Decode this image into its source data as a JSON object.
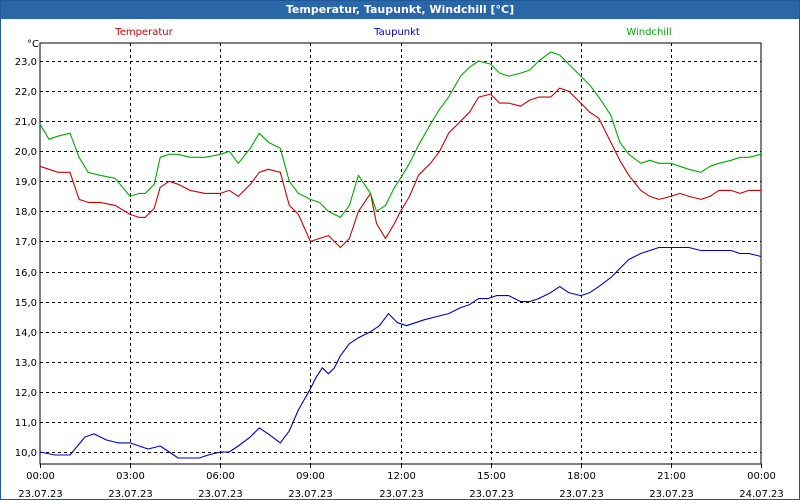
{
  "window": {
    "title": "Temperatur, Taupunkt, Windchill [°C]"
  },
  "chart_data": {
    "type": "line",
    "title": "Temperatur, Taupunkt, Windchill [°C]",
    "ylabel": "°C",
    "ylim": [
      9.6,
      23.6
    ],
    "xlim": [
      0,
      24
    ],
    "grid": true,
    "yticks": [
      10,
      11,
      12,
      13,
      14,
      15,
      16,
      17,
      18,
      19,
      20,
      21,
      22,
      23
    ],
    "ytick_labels": [
      "10,0",
      "11,0",
      "12,0",
      "13,0",
      "14,0",
      "15,0",
      "16,0",
      "17,0",
      "18,0",
      "19,0",
      "20,0",
      "21,0",
      "22,0",
      "23,0"
    ],
    "xticks": [
      0,
      3,
      6,
      9,
      12,
      15,
      18,
      21,
      24
    ],
    "xtick_times": [
      "00:00",
      "03:00",
      "06:00",
      "09:00",
      "12:00",
      "15:00",
      "18:00",
      "21:00",
      "00:00"
    ],
    "xtick_dates": [
      "23.07.23",
      "23.07.23",
      "23.07.23",
      "23.07.23",
      "23.07.23",
      "23.07.23",
      "23.07.23",
      "23.07.23",
      "24.07.23"
    ],
    "series": [
      {
        "name": "Temperatur",
        "color": "#cc0000",
        "x": [
          0,
          0.3,
          0.6,
          1,
          1.3,
          1.6,
          2,
          2.5,
          3,
          3.3,
          3.5,
          3.8,
          4,
          4.3,
          4.6,
          5,
          5.5,
          6,
          6.3,
          6.6,
          7,
          7.3,
          7.6,
          8,
          8.3,
          8.6,
          9,
          9.3,
          9.6,
          10,
          10.3,
          10.6,
          11,
          11.2,
          11.5,
          11.8,
          12,
          12.3,
          12.6,
          13,
          13.3,
          13.6,
          14,
          14.3,
          14.6,
          15,
          15.3,
          15.6,
          16,
          16.3,
          16.6,
          17,
          17.3,
          17.6,
          18,
          18.3,
          18.6,
          19,
          19.3,
          19.6,
          20,
          20.3,
          20.6,
          21,
          21.3,
          21.6,
          22,
          22.3,
          22.6,
          23,
          23.3,
          23.6,
          24
        ],
        "values": [
          19.5,
          19.4,
          19.3,
          19.3,
          18.4,
          18.3,
          18.3,
          18.2,
          17.9,
          17.8,
          17.8,
          18.1,
          18.8,
          19.0,
          18.9,
          18.7,
          18.6,
          18.6,
          18.7,
          18.5,
          18.9,
          19.3,
          19.4,
          19.3,
          18.2,
          17.9,
          17.0,
          17.1,
          17.2,
          16.8,
          17.1,
          18.0,
          18.6,
          17.6,
          17.1,
          17.6,
          18.0,
          18.5,
          19.2,
          19.6,
          20.0,
          20.6,
          21.0,
          21.3,
          21.8,
          21.9,
          21.6,
          21.6,
          21.5,
          21.7,
          21.8,
          21.8,
          22.1,
          22.0,
          21.6,
          21.3,
          21.1,
          20.3,
          19.7,
          19.2,
          18.7,
          18.5,
          18.4,
          18.5,
          18.6,
          18.5,
          18.4,
          18.5,
          18.7,
          18.7,
          18.6,
          18.7,
          18.7
        ]
      },
      {
        "name": "Taupunkt",
        "color": "#0000cc",
        "x": [
          0,
          0.5,
          1,
          1.5,
          1.8,
          2.2,
          2.6,
          3,
          3.3,
          3.6,
          4,
          4.3,
          4.6,
          5,
          5.3,
          5.6,
          6,
          6.3,
          6.6,
          7,
          7.3,
          7.6,
          8,
          8.3,
          8.6,
          9,
          9.2,
          9.4,
          9.6,
          9.8,
          10,
          10.3,
          10.6,
          11,
          11.3,
          11.6,
          11.9,
          12.2,
          12.5,
          12.8,
          13.2,
          13.6,
          14,
          14.3,
          14.6,
          14.9,
          15.2,
          15.6,
          16,
          16.3,
          16.6,
          17,
          17.3,
          17.6,
          18,
          18.3,
          18.6,
          19,
          19.3,
          19.6,
          20,
          20.3,
          20.6,
          21,
          21.3,
          21.6,
          22,
          22.3,
          22.6,
          23,
          23.3,
          23.6,
          24
        ],
        "values": [
          10.0,
          9.9,
          9.9,
          10.5,
          10.6,
          10.4,
          10.3,
          10.3,
          10.2,
          10.1,
          10.2,
          10.0,
          9.8,
          9.8,
          9.8,
          9.9,
          10.0,
          10.0,
          10.2,
          10.5,
          10.8,
          10.6,
          10.3,
          10.7,
          11.4,
          12.1,
          12.5,
          12.8,
          12.6,
          12.8,
          13.2,
          13.6,
          13.8,
          14.0,
          14.2,
          14.6,
          14.3,
          14.2,
          14.3,
          14.4,
          14.5,
          14.6,
          14.8,
          14.9,
          15.1,
          15.1,
          15.2,
          15.2,
          15.0,
          15.0,
          15.1,
          15.3,
          15.5,
          15.3,
          15.2,
          15.3,
          15.5,
          15.8,
          16.1,
          16.4,
          16.6,
          16.7,
          16.8,
          16.8,
          16.8,
          16.8,
          16.7,
          16.7,
          16.7,
          16.7,
          16.6,
          16.6,
          16.5
        ]
      },
      {
        "name": "Windchill",
        "color": "#00aa00",
        "x": [
          0,
          0.3,
          0.6,
          1,
          1.3,
          1.6,
          2,
          2.5,
          3,
          3.3,
          3.5,
          3.8,
          4,
          4.3,
          4.6,
          5,
          5.5,
          6,
          6.3,
          6.6,
          7,
          7.3,
          7.6,
          8,
          8.3,
          8.6,
          9,
          9.3,
          9.6,
          10,
          10.3,
          10.6,
          11,
          11.2,
          11.5,
          11.8,
          12,
          12.3,
          12.6,
          13,
          13.3,
          13.6,
          14,
          14.3,
          14.6,
          15,
          15.3,
          15.6,
          16,
          16.3,
          16.6,
          17,
          17.3,
          17.6,
          18,
          18.3,
          18.6,
          19,
          19.3,
          19.6,
          20,
          20.3,
          20.6,
          21,
          21.3,
          21.6,
          22,
          22.3,
          22.6,
          23,
          23.3,
          23.6,
          24
        ],
        "values": [
          20.9,
          20.4,
          20.5,
          20.6,
          19.8,
          19.3,
          19.2,
          19.1,
          18.5,
          18.6,
          18.6,
          18.9,
          19.8,
          19.9,
          19.9,
          19.8,
          19.8,
          19.9,
          20.0,
          19.6,
          20.1,
          20.6,
          20.3,
          20.1,
          19.0,
          18.6,
          18.4,
          18.3,
          18.0,
          17.8,
          18.2,
          19.2,
          18.6,
          18.0,
          18.2,
          18.8,
          19.1,
          19.6,
          20.2,
          20.9,
          21.4,
          21.8,
          22.5,
          22.8,
          23.0,
          22.9,
          22.6,
          22.5,
          22.6,
          22.7,
          23.0,
          23.3,
          23.2,
          22.9,
          22.5,
          22.2,
          21.8,
          21.2,
          20.3,
          19.9,
          19.6,
          19.7,
          19.6,
          19.6,
          19.5,
          19.4,
          19.3,
          19.5,
          19.6,
          19.7,
          19.8,
          19.8,
          19.9
        ]
      }
    ]
  }
}
